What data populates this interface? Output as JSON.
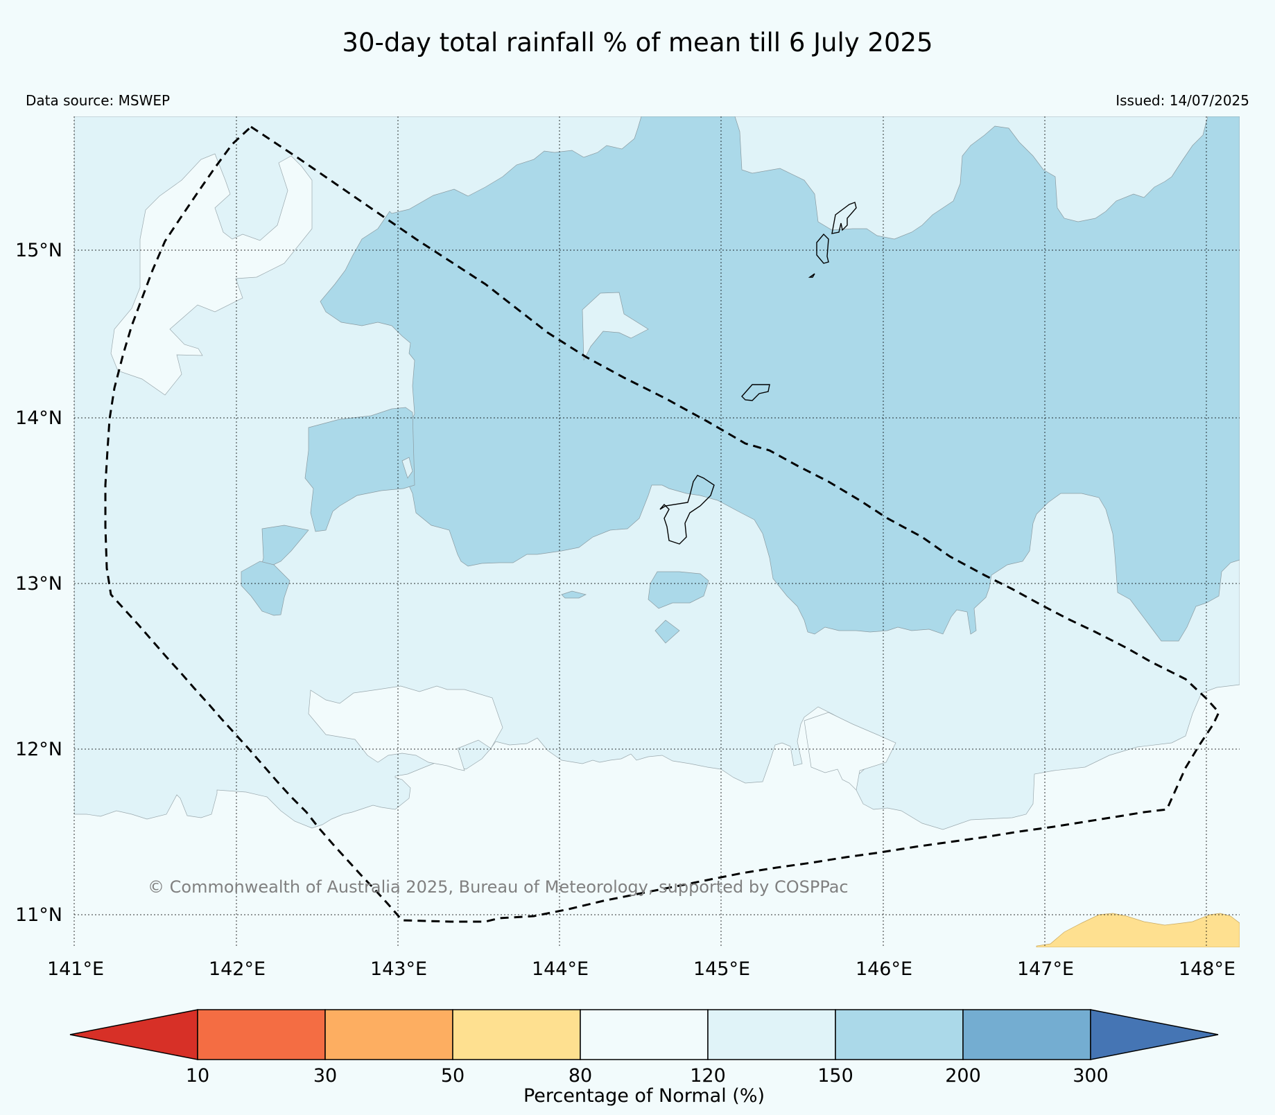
{
  "title": "30-day total rainfall % of mean till 6 July 2025",
  "data_source": "Data source: MSWEP",
  "issued": "Issued: 14/07/2025",
  "copyright": "© Commonwealth of Australia 2025, Bureau of Meteorology, supported by COSPPac",
  "map": {
    "lon_range": [
      141.0,
      148.2
    ],
    "lat_range": [
      10.8,
      15.8
    ],
    "lon_ticks": [
      {
        "value": 141,
        "label": "141°E"
      },
      {
        "value": 142,
        "label": "142°E"
      },
      {
        "value": 143,
        "label": "143°E"
      },
      {
        "value": 144,
        "label": "144°E"
      },
      {
        "value": 145,
        "label": "145°E"
      },
      {
        "value": 146,
        "label": "146°E"
      },
      {
        "value": 147,
        "label": "147°E"
      },
      {
        "value": 148,
        "label": "148°E"
      }
    ],
    "lat_ticks": [
      {
        "value": 15,
        "label": "15°N"
      },
      {
        "value": 14,
        "label": "14°N"
      },
      {
        "value": 13,
        "label": "13°N"
      },
      {
        "value": 12,
        "label": "12°N"
      },
      {
        "value": 11,
        "label": "11°N"
      }
    ],
    "gridlines": true,
    "boundary_type": "dashed",
    "colors": {
      "band_80_120": "#f2fbfc",
      "band_120_150": "#e0f3f8",
      "band_150_200": "#abd9e9",
      "band_50_80": "#fee090"
    }
  },
  "colorbar": {
    "label": "Percentage of Normal (%)",
    "tick_labels": [
      "10",
      "30",
      "50",
      "80",
      "120",
      "150",
      "200",
      "300"
    ],
    "colors": [
      "#d73027",
      "#f46d43",
      "#fdae61",
      "#fee090",
      "#f2fbfc",
      "#e0f3f8",
      "#abd9e9",
      "#74add1",
      "#4575b4"
    ]
  }
}
